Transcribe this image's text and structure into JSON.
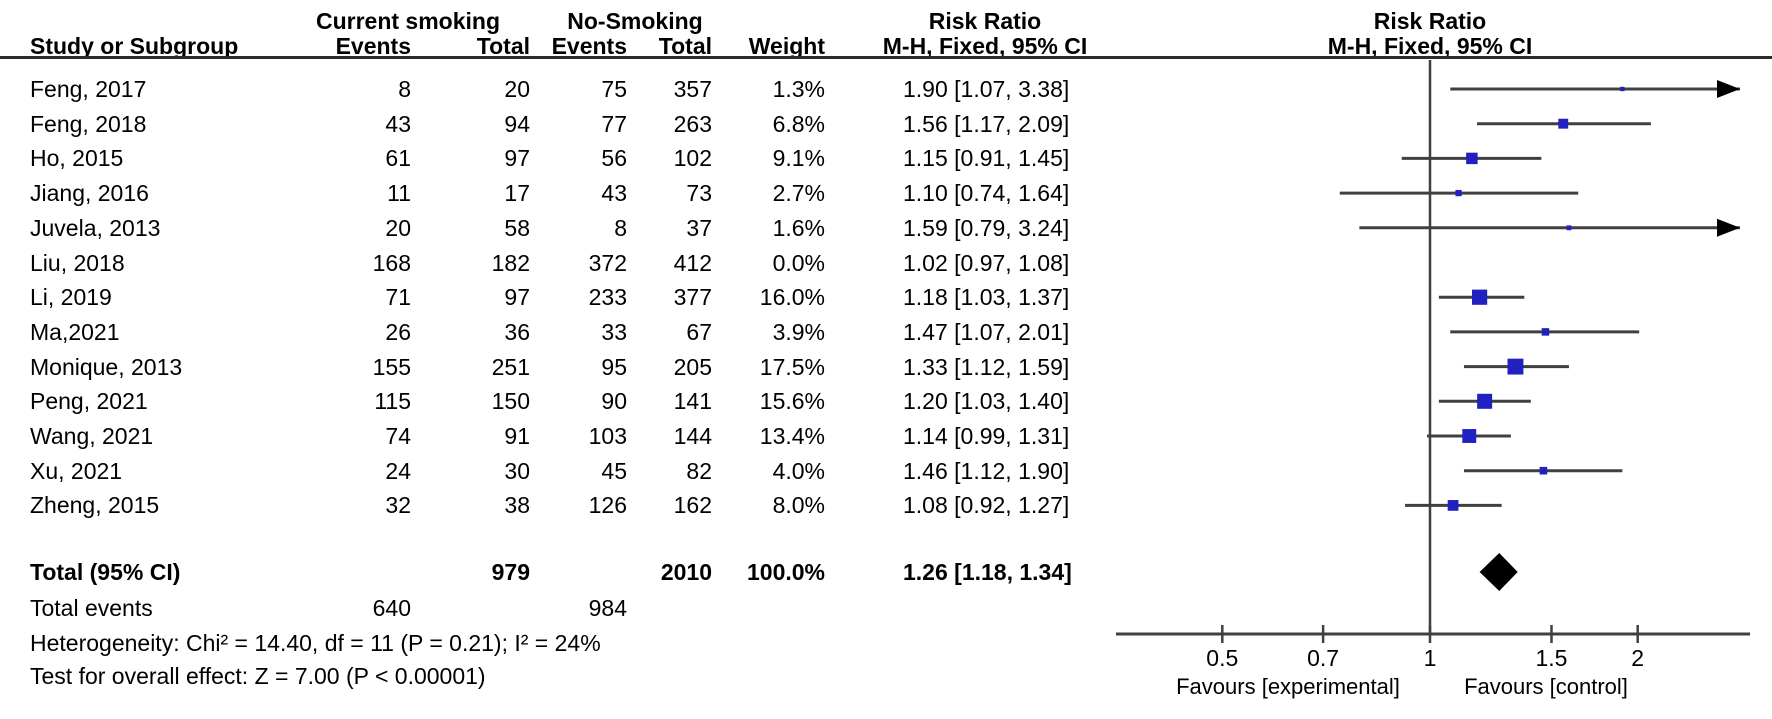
{
  "chart_data": {
    "type": "forest",
    "title_columns": {
      "study": "Study or Subgroup",
      "events": "Events",
      "total": "Total",
      "weight": "Weight",
      "group_left": "Current smoking",
      "group_right": "No-Smoking",
      "effect_title": "Risk Ratio",
      "effect_sub": "M-H, Fixed, 95% CI"
    },
    "studies": [
      {
        "name": "Feng,  2017",
        "events1": 8,
        "total1": 20,
        "events2": 75,
        "total2": 357,
        "weight_pct": 1.3,
        "rr": 1.9,
        "ci_low": 1.07,
        "ci_high": 3.38
      },
      {
        "name": "Feng,  2018",
        "events1": 43,
        "total1": 94,
        "events2": 77,
        "total2": 263,
        "weight_pct": 6.8,
        "rr": 1.56,
        "ci_low": 1.17,
        "ci_high": 2.09
      },
      {
        "name": "Ho,  2015",
        "events1": 61,
        "total1": 97,
        "events2": 56,
        "total2": 102,
        "weight_pct": 9.1,
        "rr": 1.15,
        "ci_low": 0.91,
        "ci_high": 1.45
      },
      {
        "name": "Jiang,  2016",
        "events1": 11,
        "total1": 17,
        "events2": 43,
        "total2": 73,
        "weight_pct": 2.7,
        "rr": 1.1,
        "ci_low": 0.74,
        "ci_high": 1.64
      },
      {
        "name": "Juvela,  2013",
        "events1": 20,
        "total1": 58,
        "events2": 8,
        "total2": 37,
        "weight_pct": 1.6,
        "rr": 1.59,
        "ci_low": 0.79,
        "ci_high": 3.24
      },
      {
        "name": "Liu,  2018",
        "events1": 168,
        "total1": 182,
        "events2": 372,
        "total2": 412,
        "weight_pct": 0.0,
        "rr": 1.02,
        "ci_low": 0.97,
        "ci_high": 1.08
      },
      {
        "name": "Li,  2019",
        "events1": 71,
        "total1": 97,
        "events2": 233,
        "total2": 377,
        "weight_pct": 16.0,
        "rr": 1.18,
        "ci_low": 1.03,
        "ci_high": 1.37
      },
      {
        "name": "Ma,2021",
        "events1": 26,
        "total1": 36,
        "events2": 33,
        "total2": 67,
        "weight_pct": 3.9,
        "rr": 1.47,
        "ci_low": 1.07,
        "ci_high": 2.01
      },
      {
        "name": "Monique,  2013",
        "events1": 155,
        "total1": 251,
        "events2": 95,
        "total2": 205,
        "weight_pct": 17.5,
        "rr": 1.33,
        "ci_low": 1.12,
        "ci_high": 1.59
      },
      {
        "name": "Peng,  2021",
        "events1": 115,
        "total1": 150,
        "events2": 90,
        "total2": 141,
        "weight_pct": 15.6,
        "rr": 1.2,
        "ci_low": 1.03,
        "ci_high": 1.4
      },
      {
        "name": "Wang,  2021",
        "events1": 74,
        "total1": 91,
        "events2": 103,
        "total2": 144,
        "weight_pct": 13.4,
        "rr": 1.14,
        "ci_low": 0.99,
        "ci_high": 1.31
      },
      {
        "name": "Xu,  2021",
        "events1": 24,
        "total1": 30,
        "events2": 45,
        "total2": 82,
        "weight_pct": 4.0,
        "rr": 1.46,
        "ci_low": 1.12,
        "ci_high": 1.9
      },
      {
        "name": "Zheng,  2015",
        "events1": 32,
        "total1": 38,
        "events2": 126,
        "total2": 162,
        "weight_pct": 8.0,
        "rr": 1.08,
        "ci_low": 0.92,
        "ci_high": 1.27
      }
    ],
    "total": {
      "label": "Total (95% CI)",
      "total1": 979,
      "total2": 2010,
      "weight_pct": 100.0,
      "rr": 1.26,
      "ci_low": 1.18,
      "ci_high": 1.34
    },
    "total_events": {
      "label": "Total events",
      "events1": 640,
      "events2": 984
    },
    "heterogeneity": "Heterogeneity: Chi² = 14.40, df = 11 (P = 0.21); I² = 24%",
    "overall_effect": "Test for overall effect: Z = 7.00 (P < 0.00001)",
    "axis": {
      "scale": "log",
      "ticks": [
        0.5,
        0.7,
        1,
        1.5,
        2
      ],
      "xlim": [
        0.35,
        2.85
      ],
      "favours_left": "Favours [experimental]",
      "favours_right": "Favours [control]"
    },
    "colors": {
      "marker": "#2121c2",
      "line": "#404040",
      "diamond": "#000000",
      "text": "#000000"
    }
  }
}
